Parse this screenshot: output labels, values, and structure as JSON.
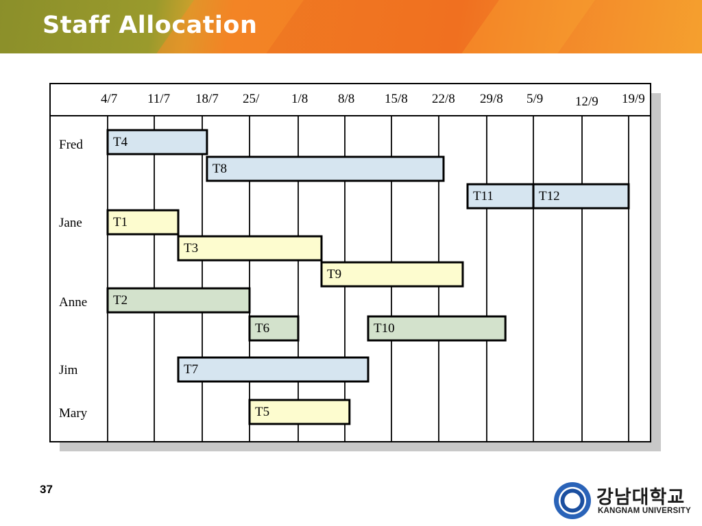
{
  "slide": {
    "title": "Staff Allocation",
    "page_number": "37"
  },
  "logo": {
    "korean_name": "강남대학교",
    "english_name": "KANGNAM UNIVERSITY"
  },
  "colors": {
    "blue": "#d6e5f0",
    "yellow": "#fdfccf",
    "green": "#d3e2cc",
    "grid": "#000000"
  },
  "timeline": {
    "dates": [
      "4/7",
      "11/7",
      "18/7",
      "25/",
      "1/8",
      "8/8",
      "15/8",
      "22/8",
      "29/8",
      "5/9",
      "12/9",
      "19/9"
    ]
  },
  "staff": [
    {
      "name": "Fred"
    },
    {
      "name": "Jane"
    },
    {
      "name": "Anne"
    },
    {
      "name": "Jim"
    },
    {
      "name": "Mary"
    }
  ],
  "tasks": [
    {
      "label": "T4",
      "staff": "Fred",
      "start": 0,
      "end": 2.1,
      "color": "blue"
    },
    {
      "label": "T8",
      "staff": "Fred",
      "start": 2.1,
      "end": 7.1,
      "color": "blue"
    },
    {
      "label": "T11",
      "staff": "Fred",
      "start": 7.6,
      "end": 9.0,
      "color": "blue"
    },
    {
      "label": "T12",
      "staff": "Fred",
      "start": 9.0,
      "end": 11.0,
      "color": "blue"
    },
    {
      "label": "T1",
      "staff": "Jane",
      "start": 0,
      "end": 1.5,
      "color": "yellow"
    },
    {
      "label": "T3",
      "staff": "Jane",
      "start": 1.5,
      "end": 4.5,
      "color": "yellow"
    },
    {
      "label": "T9",
      "staff": "Jane",
      "start": 4.5,
      "end": 7.5,
      "color": "yellow"
    },
    {
      "label": "T2",
      "staff": "Anne",
      "start": 0,
      "end": 3.0,
      "color": "green"
    },
    {
      "label": "T6",
      "staff": "Anne",
      "start": 3.0,
      "end": 4.0,
      "color": "green"
    },
    {
      "label": "T10",
      "staff": "Anne",
      "start": 5.5,
      "end": 8.4,
      "color": "green"
    },
    {
      "label": "T7",
      "staff": "Jim",
      "start": 1.5,
      "end": 5.5,
      "color": "blue"
    },
    {
      "label": "T5",
      "staff": "Mary",
      "start": 3.0,
      "end": 5.1,
      "color": "yellow"
    }
  ]
}
